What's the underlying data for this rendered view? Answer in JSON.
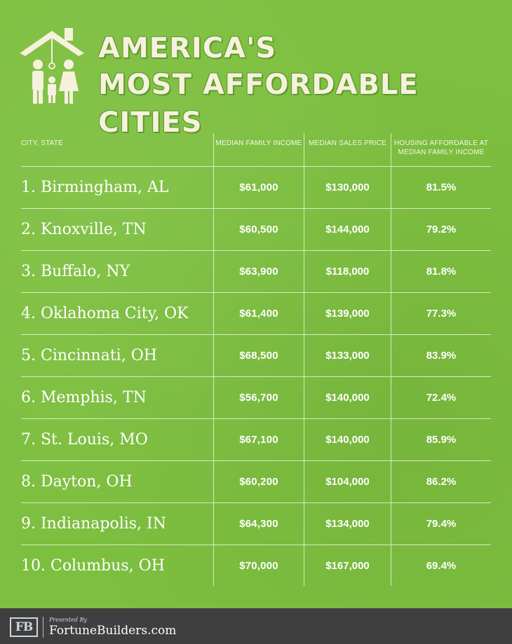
{
  "title": {
    "line1": "America's",
    "line2": "Most Affordable Cities"
  },
  "icon": "house-family-icon",
  "table": {
    "headers": {
      "city": "CITY, STATE",
      "income": "MEDIAN FAMILY INCOME",
      "price": "MEDIAN SALES PRICE",
      "affordable": "HOUSING AFFORDABLE AT MEDIAN FAMILY INCOME"
    },
    "rows": [
      {
        "city": "1. Birmingham, AL",
        "income": "$61,000",
        "price": "$130,000",
        "affordable": "81.5%"
      },
      {
        "city": "2. Knoxville, TN",
        "income": "$60,500",
        "price": "$144,000",
        "affordable": "79.2%"
      },
      {
        "city": "3. Buffalo, NY",
        "income": "$63,900",
        "price": "$118,000",
        "affordable": "81.8%"
      },
      {
        "city": "4. Oklahoma City, OK",
        "income": "$61,400",
        "price": "$139,000",
        "affordable": "77.3%"
      },
      {
        "city": "5. Cincinnati, OH",
        "income": "$68,500",
        "price": "$133,000",
        "affordable": "83.9%"
      },
      {
        "city": "6. Memphis, TN",
        "income": "$56,700",
        "price": "$140,000",
        "affordable": "72.4%"
      },
      {
        "city": "7. St. Louis, MO",
        "income": "$67,100",
        "price": "$140,000",
        "affordable": "85.9%"
      },
      {
        "city": "8. Dayton, OH",
        "income": "$60,200",
        "price": "$104,000",
        "affordable": "86.2%"
      },
      {
        "city": "9. Indianapolis, IN",
        "income": "$64,300",
        "price": "$134,000",
        "affordable": "79.4%"
      },
      {
        "city": "10. Columbus, OH",
        "income": "$70,000",
        "price": "$167,000",
        "affordable": "69.4%"
      }
    ]
  },
  "footer": {
    "badge": "FB",
    "presented": "Presented By",
    "brand": "FortuneBuilders.com"
  },
  "colors": {
    "background": "#7dbf3f",
    "footer": "#3f3f3f",
    "title": "#f6f1dc"
  }
}
